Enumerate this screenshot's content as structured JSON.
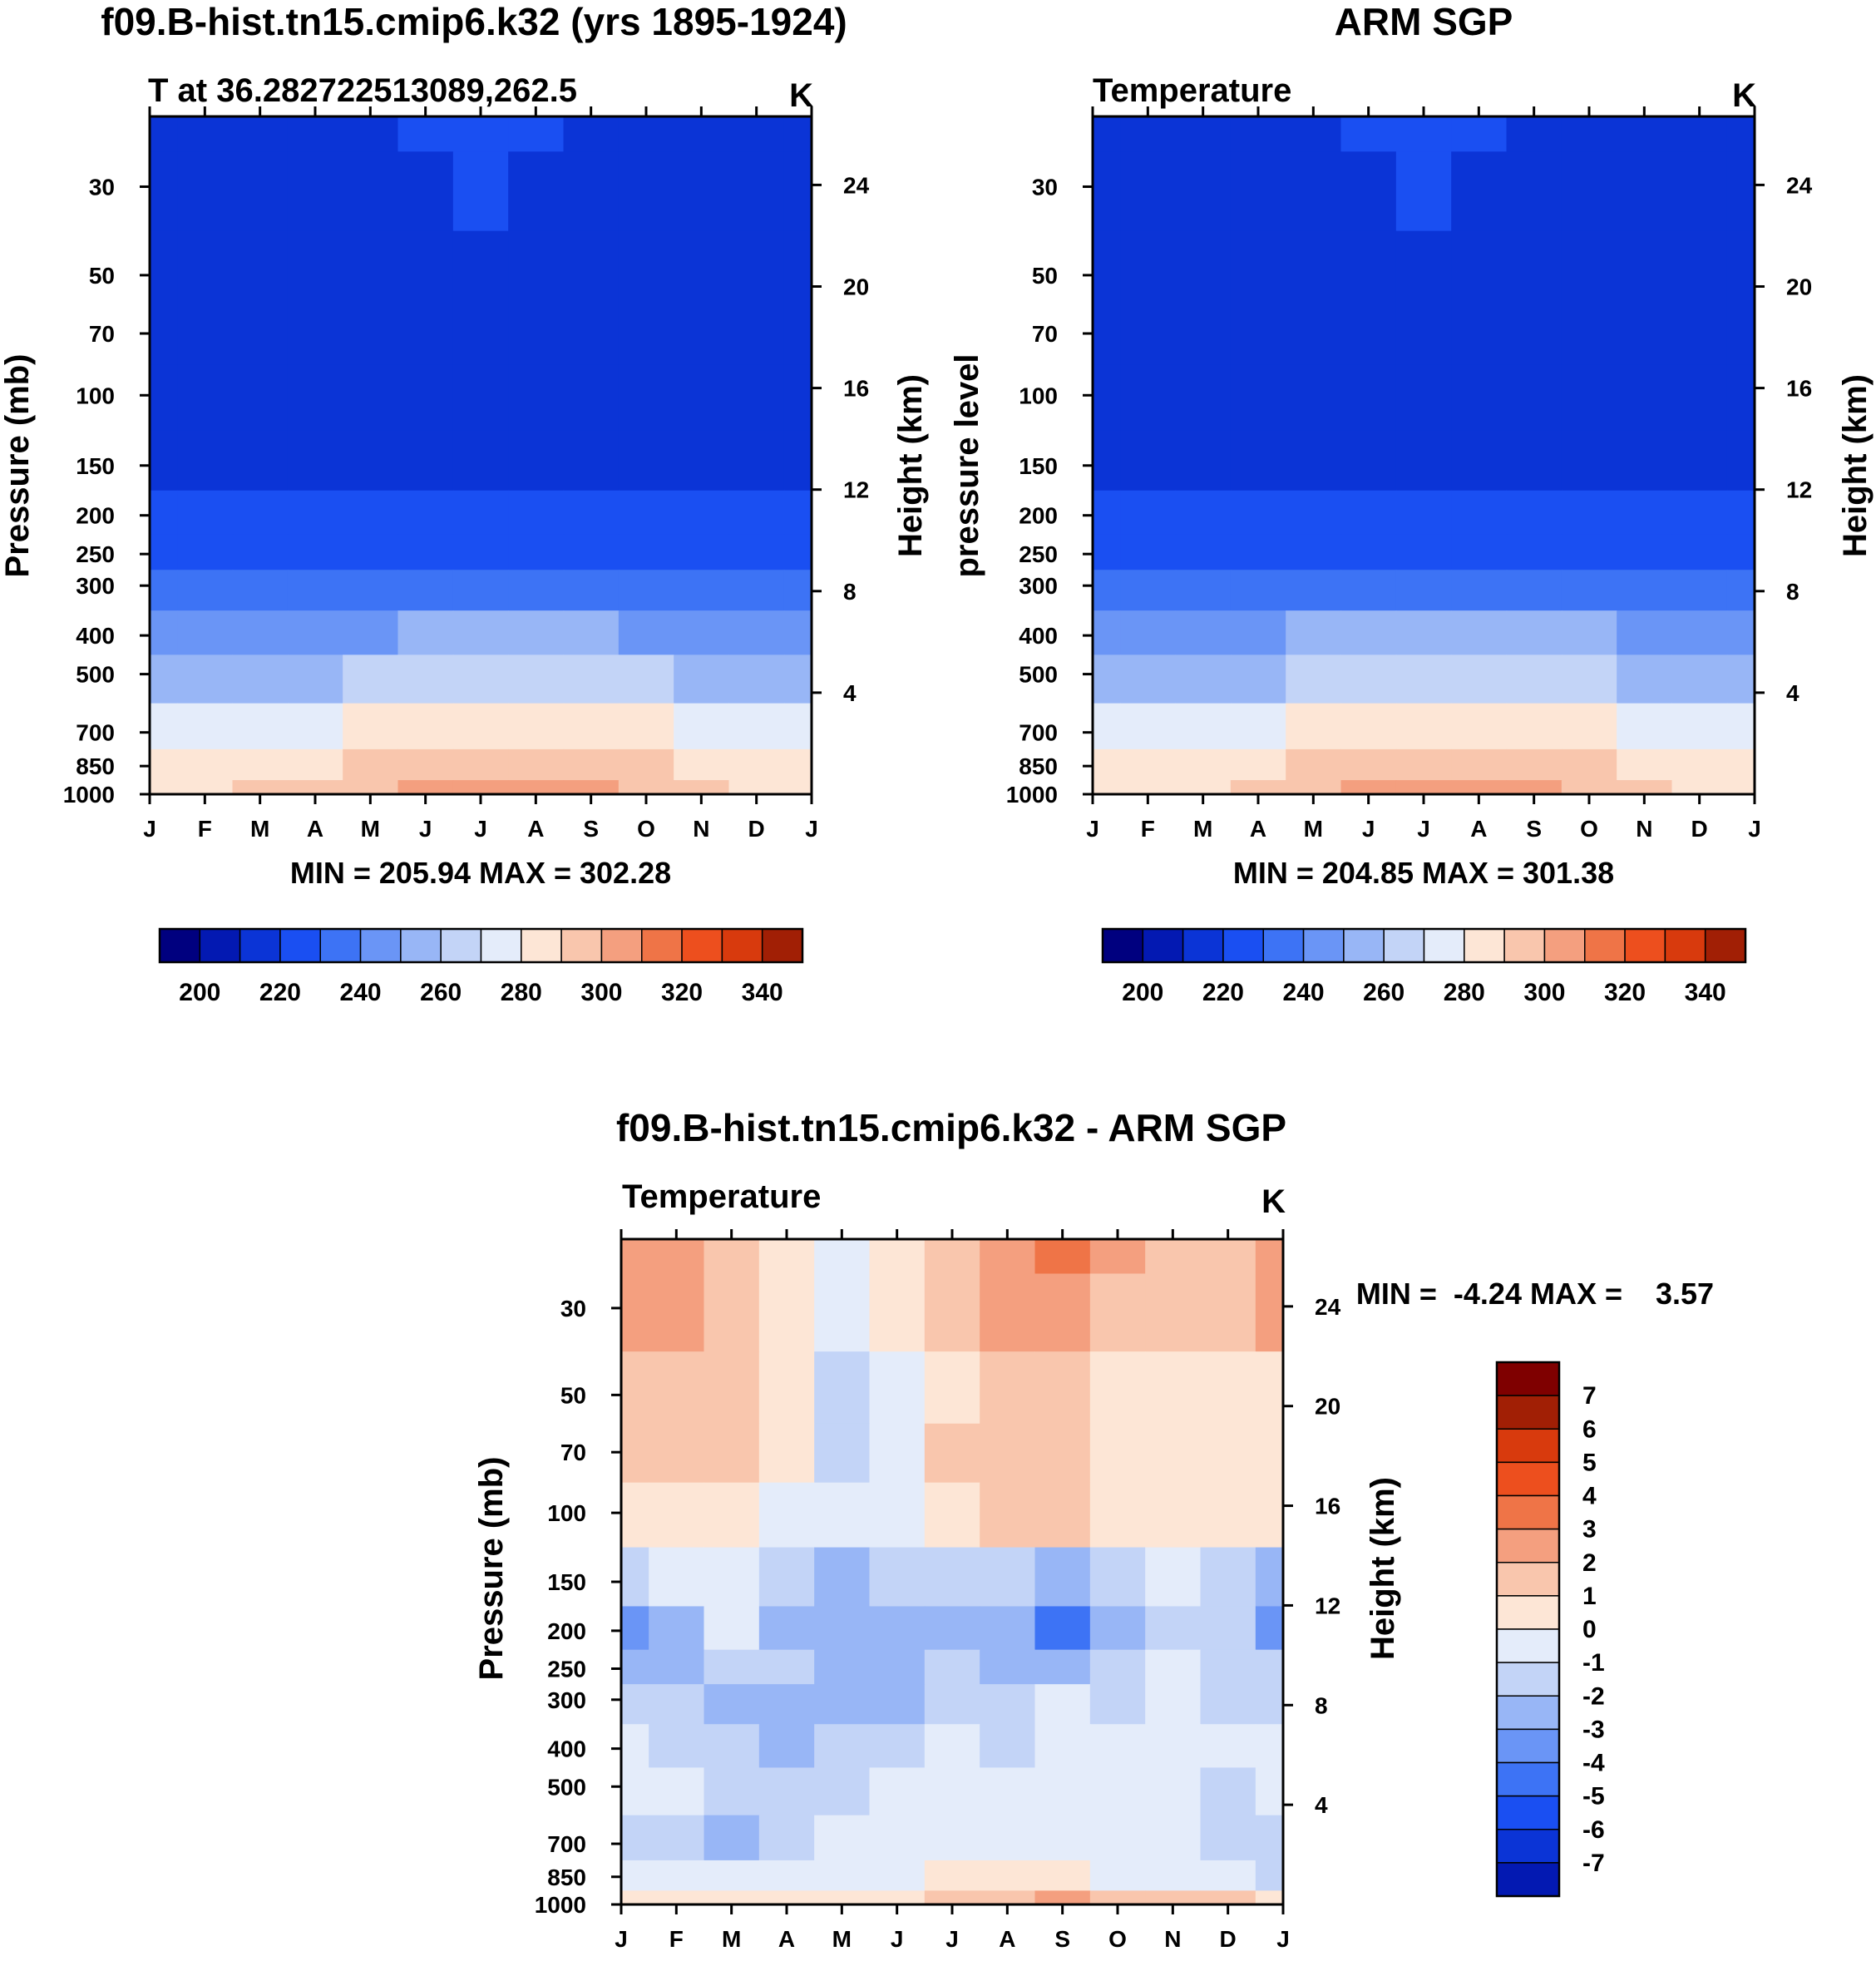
{
  "palette": {
    "temperature": [
      "#00007f",
      "#0319b2",
      "#0b34d6",
      "#1a4ff2",
      "#3d73f5",
      "#6a95f6",
      "#98b6f6",
      "#c3d4f7",
      "#e4ecfa",
      "#fde6d6",
      "#f9c6ad",
      "#f49f7f",
      "#ef7447",
      "#ed4f1e",
      "#d83a0d",
      "#a11f05",
      "#7f0000"
    ],
    "difference": [
      "#00007f",
      "#0319b2",
      "#0b34d6",
      "#1a4ff2",
      "#3d73f5",
      "#6a95f6",
      "#98b6f6",
      "#c3d4f7",
      "#e4ecfa",
      "#fde6d6",
      "#f9c6ad",
      "#f49f7f",
      "#ef7447",
      "#ed4f1e",
      "#d83a0d",
      "#a11f05",
      "#7f0000"
    ]
  },
  "chart_data": [
    {
      "type": "heatmap",
      "panel": "model",
      "title": "f09.B-hist.tn15.cmip6.k32 (yrs 1895-1924)",
      "subtitle_left": "T at 36.282722513089,262.5",
      "subtitle_right": "K",
      "ylabel": "Pressure (mb)",
      "ylabel_right": "Height (km)",
      "x_ticks": [
        "J",
        "F",
        "M",
        "A",
        "M",
        "J",
        "J",
        "A",
        "S",
        "O",
        "N",
        "D",
        "J"
      ],
      "y_ticks": [
        30,
        50,
        70,
        100,
        150,
        200,
        250,
        300,
        400,
        500,
        700,
        850,
        1000
      ],
      "height_ticks": [
        24,
        20,
        16,
        12,
        8,
        4
      ],
      "ylim": [
        20,
        1000
      ],
      "stats_text": "MIN = 205.94 MAX = 302.28",
      "min": 205.94,
      "max": 302.28,
      "levels": [
        195,
        205,
        215,
        225,
        235,
        245,
        255,
        265,
        275,
        285,
        295,
        305,
        315,
        325,
        335,
        345
      ],
      "colorbar_labels": [
        "200",
        "220",
        "240",
        "260",
        "280",
        "300",
        "320",
        "340"
      ],
      "pressure_levels": [
        20,
        30,
        50,
        70,
        100,
        150,
        200,
        250,
        300,
        400,
        500,
        700,
        850,
        1000
      ],
      "months": [
        "J",
        "F",
        "M",
        "A",
        "M",
        "J",
        "J",
        "A",
        "S",
        "O",
        "N",
        "D",
        "J"
      ],
      "values": [
        [
          211,
          212,
          212,
          212,
          214,
          216,
          218,
          217,
          214,
          212,
          211,
          211,
          211
        ],
        [
          212,
          212,
          212,
          212,
          213,
          214,
          215,
          214,
          213,
          212,
          212,
          212,
          212
        ],
        [
          212,
          212,
          212,
          212,
          212,
          212,
          212,
          212,
          212,
          212,
          212,
          212,
          212
        ],
        [
          213,
          212,
          212,
          212,
          211,
          211,
          210,
          210,
          210,
          210,
          211,
          212,
          213
        ],
        [
          212,
          212,
          212,
          212,
          210,
          209,
          209,
          208,
          209,
          209,
          211,
          212,
          212
        ],
        [
          214,
          214,
          214,
          214,
          212,
          210,
          209,
          209,
          210,
          211,
          212,
          214,
          214
        ],
        [
          216,
          216,
          216,
          216,
          216,
          216,
          216,
          216,
          216,
          216,
          216,
          216,
          216
        ],
        [
          219,
          219,
          219,
          220,
          221,
          222,
          223,
          223,
          222,
          221,
          220,
          219,
          219
        ],
        [
          226,
          226,
          226,
          227,
          229,
          231,
          232,
          232,
          231,
          229,
          227,
          226,
          226
        ],
        [
          240,
          240,
          240,
          242,
          244,
          246,
          247,
          247,
          246,
          244,
          242,
          240,
          240
        ],
        [
          251,
          251,
          251,
          253,
          256,
          258,
          259,
          259,
          258,
          256,
          253,
          251,
          251
        ],
        [
          269,
          269,
          269,
          273,
          277,
          280,
          282,
          282,
          280,
          277,
          273,
          269,
          269
        ],
        [
          276,
          276,
          278,
          283,
          288,
          291,
          293,
          293,
          291,
          287,
          282,
          277,
          276
        ],
        [
          282,
          282,
          285,
          289,
          294,
          297,
          299,
          301,
          296,
          292,
          288,
          283,
          282
        ]
      ]
    },
    {
      "type": "heatmap",
      "panel": "obs",
      "title": "ARM SGP",
      "subtitle_left": "Temperature",
      "subtitle_right": "K",
      "ylabel": "pressure level",
      "ylabel_right": "Height (km)",
      "x_ticks": [
        "J",
        "F",
        "M",
        "A",
        "M",
        "J",
        "J",
        "A",
        "S",
        "O",
        "N",
        "D",
        "J"
      ],
      "y_ticks": [
        30,
        50,
        70,
        100,
        150,
        200,
        250,
        300,
        400,
        500,
        700,
        850,
        1000
      ],
      "height_ticks": [
        24,
        20,
        16,
        12,
        8,
        4
      ],
      "ylim": [
        20,
        1000
      ],
      "stats_text": "MIN = 204.85 MAX = 301.38",
      "min": 204.85,
      "max": 301.38,
      "levels": [
        195,
        205,
        215,
        225,
        235,
        245,
        255,
        265,
        275,
        285,
        295,
        305,
        315,
        325,
        335,
        345
      ],
      "colorbar_labels": [
        "200",
        "220",
        "240",
        "260",
        "280",
        "300",
        "320",
        "340"
      ],
      "pressure_levels": [
        20,
        30,
        50,
        70,
        100,
        150,
        200,
        250,
        300,
        400,
        500,
        700,
        850,
        1000
      ],
      "months": [
        "J",
        "F",
        "M",
        "A",
        "M",
        "J",
        "J",
        "A",
        "S",
        "O",
        "N",
        "D",
        "J"
      ],
      "values": [
        [
          211,
          212,
          212,
          212,
          214,
          216,
          218,
          217,
          214,
          212,
          211,
          211,
          211
        ],
        [
          212,
          212,
          212,
          212,
          213,
          214,
          215,
          214,
          213,
          212,
          212,
          212,
          212
        ],
        [
          210,
          210,
          212,
          212,
          212,
          212,
          212,
          212,
          212,
          212,
          212,
          211,
          210
        ],
        [
          209,
          209,
          210,
          211,
          211,
          211,
          210,
          210,
          210,
          210,
          211,
          210,
          209
        ],
        [
          211,
          211,
          212,
          212,
          210,
          209,
          208,
          208,
          209,
          210,
          211,
          212,
          211
        ],
        [
          214,
          214,
          214,
          214,
          212,
          210,
          209,
          209,
          210,
          211,
          212,
          214,
          214
        ],
        [
          216,
          216,
          216,
          216,
          216,
          216,
          216,
          216,
          216,
          216,
          216,
          216,
          216
        ],
        [
          220,
          220,
          220,
          221,
          222,
          223,
          224,
          224,
          223,
          222,
          221,
          220,
          220
        ],
        [
          227,
          227,
          227,
          228,
          230,
          232,
          233,
          233,
          232,
          230,
          228,
          227,
          227
        ],
        [
          241,
          241,
          241,
          243,
          245,
          247,
          248,
          248,
          247,
          245,
          243,
          241,
          241
        ],
        [
          252,
          252,
          252,
          254,
          257,
          259,
          260,
          260,
          259,
          257,
          254,
          252,
          252
        ],
        [
          270,
          270,
          270,
          274,
          278,
          281,
          283,
          283,
          281,
          278,
          274,
          270,
          270
        ],
        [
          276,
          276,
          278,
          283,
          287,
          290,
          292,
          292,
          290,
          286,
          281,
          277,
          276
        ],
        [
          281,
          281,
          284,
          288,
          293,
          296,
          298,
          300,
          296,
          291,
          287,
          282,
          281
        ]
      ]
    },
    {
      "type": "heatmap",
      "panel": "difference",
      "title": "f09.B-hist.tn15.cmip6.k32 - ARM SGP",
      "subtitle_left": "Temperature",
      "subtitle_right": "K",
      "ylabel": "Pressure (mb)",
      "ylabel_right": "Height (km)",
      "x_ticks": [
        "J",
        "F",
        "M",
        "A",
        "M",
        "J",
        "J",
        "A",
        "S",
        "O",
        "N",
        "D",
        "J"
      ],
      "y_ticks": [
        30,
        50,
        70,
        100,
        150,
        200,
        250,
        300,
        400,
        500,
        700,
        850,
        1000
      ],
      "height_ticks": [
        24,
        20,
        16,
        12,
        8,
        4
      ],
      "ylim": [
        20,
        1000
      ],
      "stats_text": "MIN =  -4.24 MAX =    3.57",
      "min": -4.24,
      "max": 3.57,
      "levels": [
        -8,
        -7,
        -6,
        -5,
        -4,
        -3,
        -2,
        -1,
        0,
        1,
        2,
        3,
        4,
        5,
        6,
        7,
        8
      ],
      "colorbar_labels": [
        "7",
        "6",
        "5",
        "4",
        "3",
        "2",
        "1",
        "0",
        "-1",
        "-2",
        "-3",
        "-4",
        "-5",
        "-6",
        "-7"
      ],
      "pressure_levels": [
        20,
        30,
        50,
        70,
        100,
        150,
        200,
        250,
        300,
        400,
        500,
        700,
        850,
        1000
      ],
      "months": [
        "J",
        "F",
        "M",
        "A",
        "M",
        "J",
        "J",
        "A",
        "S",
        "O",
        "N",
        "D",
        "J"
      ],
      "values": [
        [
          2.3,
          2.2,
          1.6,
          0.6,
          -0.3,
          0.4,
          1.6,
          2.6,
          3.4,
          2.2,
          1.4,
          1.6,
          2.4
        ],
        [
          2.1,
          2.0,
          1.4,
          0.4,
          -0.6,
          0.2,
          1.4,
          2.3,
          2.6,
          1.6,
          1.2,
          1.3,
          2.1
        ],
        [
          1.6,
          1.6,
          1.2,
          0.0,
          -1.6,
          -0.3,
          0.8,
          1.4,
          1.6,
          0.9,
          0.6,
          0.6,
          0.8
        ],
        [
          1.2,
          1.5,
          1.9,
          0.3,
          -1.1,
          -0.6,
          1.2,
          1.6,
          1.8,
          0.8,
          0.6,
          0.8,
          0.6
        ],
        [
          0.4,
          0.5,
          0.8,
          -0.2,
          -0.4,
          -0.3,
          0.9,
          1.3,
          1.4,
          0.6,
          0.3,
          0.3,
          0.3
        ],
        [
          -1.2,
          -1.0,
          -0.4,
          -1.6,
          -2.4,
          -1.6,
          -1.2,
          -1.3,
          -2.4,
          -1.4,
          -0.8,
          -1.6,
          -2.2
        ],
        [
          -3.1,
          -2.4,
          -0.6,
          -2.4,
          -3.0,
          -2.6,
          -2.2,
          -2.5,
          -4.2,
          -2.8,
          -1.4,
          -2.0,
          -3.2
        ],
        [
          -2.2,
          -2.2,
          -2.0,
          -1.6,
          -2.2,
          -2.6,
          -1.7,
          -2.2,
          -2.6,
          -1.8,
          -1.0,
          -1.2,
          -1.4
        ],
        [
          -1.6,
          -1.8,
          -2.2,
          -2.2,
          -2.2,
          -2.2,
          -1.5,
          -1.6,
          -1.0,
          -1.2,
          -0.6,
          -1.2,
          -1.6
        ],
        [
          -0.6,
          -1.2,
          -1.6,
          -2.2,
          -1.6,
          -1.3,
          -0.8,
          -1.6,
          -0.4,
          -0.8,
          -1.0,
          -0.6,
          -0.8
        ],
        [
          -0.4,
          -1.0,
          -1.2,
          -1.6,
          -1.3,
          -0.7,
          -0.6,
          -0.9,
          -0.6,
          -0.8,
          -0.6,
          -1.1,
          -0.6
        ],
        [
          -1.2,
          -1.4,
          -2.2,
          -1.4,
          -0.6,
          -0.4,
          -0.4,
          -0.6,
          -0.7,
          -0.6,
          -0.7,
          -1.1,
          -1.2
        ],
        [
          -0.4,
          -0.5,
          -0.9,
          -1.0,
          -0.6,
          -0.3,
          0.3,
          0.6,
          0.4,
          -0.3,
          -0.4,
          -0.9,
          -1.2
        ],
        [
          0.3,
          0.4,
          0.3,
          0.2,
          0.6,
          0.8,
          1.1,
          1.5,
          2.4,
          1.6,
          1.8,
          1.2,
          0.6
        ]
      ]
    }
  ]
}
